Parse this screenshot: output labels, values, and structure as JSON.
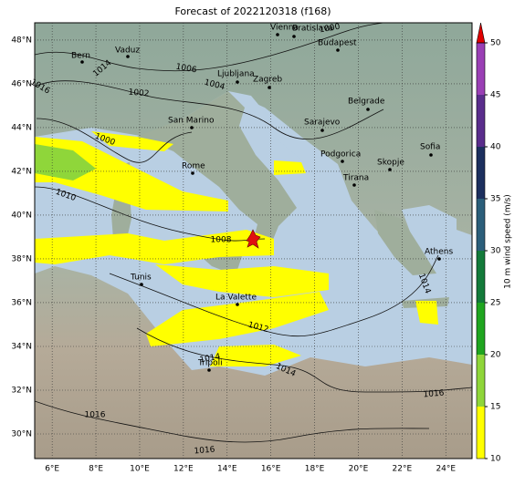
{
  "title": "Forecast of 2022120318 (f168)",
  "map": {
    "lon_range": [
      5.2,
      25.2
    ],
    "lat_range": [
      28.875,
      48.79
    ],
    "lon_ticks": [
      {
        "value": 6,
        "label": "6°E"
      },
      {
        "value": 8,
        "label": "8°E"
      },
      {
        "value": 10,
        "label": "10°E"
      },
      {
        "value": 12,
        "label": "12°E"
      },
      {
        "value": 14,
        "label": "14°E"
      },
      {
        "value": 16,
        "label": "16°E"
      },
      {
        "value": 18,
        "label": "18°E"
      },
      {
        "value": 20,
        "label": "20°E"
      },
      {
        "value": 22,
        "label": "22°E"
      },
      {
        "value": 24,
        "label": "24°E"
      }
    ],
    "lat_ticks": [
      {
        "value": 30,
        "label": "30°N"
      },
      {
        "value": 32,
        "label": "32°N"
      },
      {
        "value": 34,
        "label": "34°N"
      },
      {
        "value": 36,
        "label": "36°N"
      },
      {
        "value": 38,
        "label": "38°N"
      },
      {
        "value": 40,
        "label": "40°N"
      },
      {
        "value": 42,
        "label": "42°N"
      },
      {
        "value": 44,
        "label": "44°N"
      },
      {
        "value": 46,
        "label": "46°N"
      },
      {
        "value": 48,
        "label": "48°N"
      }
    ],
    "cities": [
      "Vienna",
      "Bratislava",
      "Budapest",
      "Vaduz",
      "Bern",
      "Ljubljana",
      "Zagreb",
      "Belgrade",
      "San Marino",
      "Sarajevo",
      "Podgorica",
      "Sofia",
      "Skopje",
      "Rome",
      "Tirana",
      "Athens",
      "Tunis",
      "La Valette",
      "Tripoli"
    ],
    "isobar_labels": [
      1000,
      1014,
      1016,
      1006,
      1002,
      1004,
      1000,
      1010,
      1008,
      1012,
      1014,
      1014,
      1016,
      1016,
      1016,
      1014
    ]
  },
  "colorbar": {
    "label": "10 m wind speed (m/s)",
    "lim": [
      10,
      50
    ],
    "ticks": [
      10,
      15,
      20,
      25,
      30,
      35,
      40,
      45,
      50
    ],
    "colors": [
      "#ffff00",
      "#8fd63a",
      "#1fa51f",
      "#137a3a",
      "#2b5e7a",
      "#1c2f5e",
      "#5a2d8c",
      "#9a3fb5"
    ],
    "extend_color": "#e00000"
  }
}
